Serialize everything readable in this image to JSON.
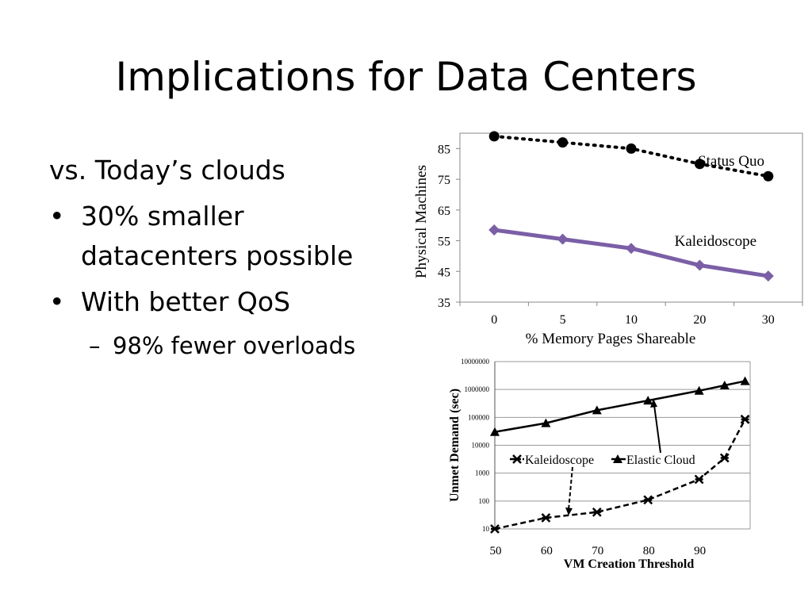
{
  "slide": {
    "title": "Implications for Data Centers",
    "bullets": [
      {
        "level": 0,
        "marker": "",
        "text": "vs. Today’s clouds"
      },
      {
        "level": 1,
        "marker": "•",
        "text": "30% smaller datacenters possible"
      },
      {
        "level": 1,
        "marker": "•",
        "text": "With better QoS"
      },
      {
        "level": 2,
        "marker": "–",
        "text": "98% fewer overloads"
      }
    ]
  },
  "chart_data": [
    {
      "type": "line",
      "xlabel": "% Memory Pages Shareable",
      "ylabel": "Physical Machines",
      "categories": [
        "0",
        "5",
        "10",
        "20",
        "30"
      ],
      "yticks": [
        "35",
        "45",
        "55",
        "65",
        "75",
        "85"
      ],
      "ylim": [
        35,
        90
      ],
      "grid": false,
      "series": [
        {
          "name": "Status Quo",
          "values": [
            89,
            87,
            85,
            80,
            76
          ],
          "color": "#000000",
          "style": "dotted",
          "marker": "circle"
        },
        {
          "name": "Kaleidoscope",
          "values": [
            58.5,
            55.5,
            52.5,
            47,
            43.5
          ],
          "color": "#7b5fa6",
          "style": "solid",
          "marker": "diamond"
        }
      ]
    },
    {
      "type": "line",
      "xlabel": "VM Creation Threshold",
      "ylabel": "Unmet Demand (sec)",
      "x": [
        50,
        60,
        70,
        80,
        90,
        95,
        99
      ],
      "xticks": [
        "50",
        "60",
        "70",
        "80",
        "90"
      ],
      "yticks": [
        "10",
        "100",
        "1000",
        "10000",
        "100000",
        "1000000",
        "10000000"
      ],
      "yscale": "log",
      "ylim": [
        10,
        10000000
      ],
      "grid": true,
      "legend": "center",
      "series": [
        {
          "name": "Kaleidoscope",
          "values": [
            10,
            25,
            40,
            110,
            600,
            3500,
            85000
          ],
          "color": "#000000",
          "style": "dashed",
          "marker": "x"
        },
        {
          "name": "Elastic Cloud",
          "values": [
            30000,
            62000,
            180000,
            400000,
            900000,
            1400000,
            2000000
          ],
          "color": "#000000",
          "style": "solid",
          "marker": "triangle"
        }
      ]
    }
  ]
}
